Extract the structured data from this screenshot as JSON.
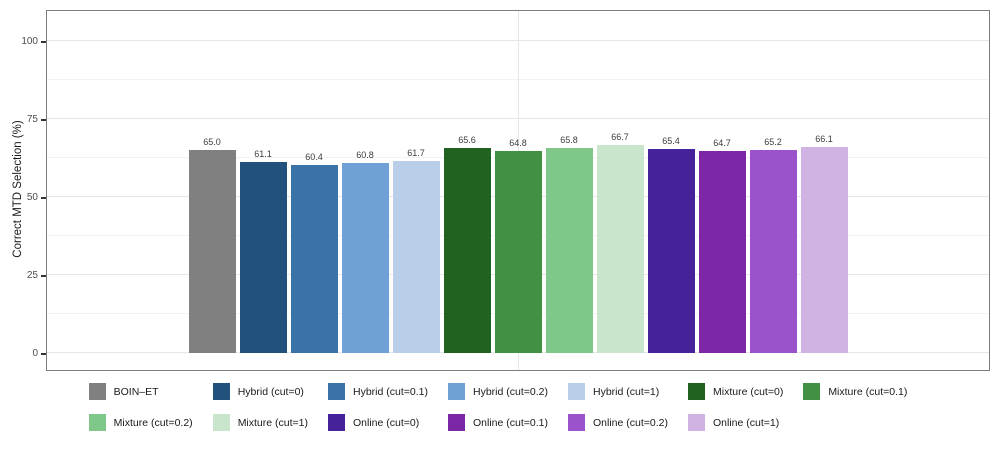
{
  "chart_data": {
    "type": "bar",
    "title": "",
    "xlabel": "",
    "ylabel": "Correct MTD Selection (%)",
    "ylim": [
      0,
      110
    ],
    "yticks": [
      0,
      25,
      50,
      75,
      100
    ],
    "grid": true,
    "legend_position": "bottom",
    "legend_columns": 7,
    "value_label_decimals": 1,
    "series": [
      {
        "name": "BOIN–ET",
        "value": 65.0,
        "color": "#808080"
      },
      {
        "name": "Hybrid (cut=0)",
        "value": 61.1,
        "color": "#21527e"
      },
      {
        "name": "Hybrid (cut=0.1)",
        "value": 60.4,
        "color": "#3b73a9"
      },
      {
        "name": "Hybrid (cut=0.2)",
        "value": 60.8,
        "color": "#6fa0d6"
      },
      {
        "name": "Hybrid (cut=1)",
        "value": 61.7,
        "color": "#b9cfe9"
      },
      {
        "name": "Mixture (cut=0)",
        "value": 65.6,
        "color": "#20621f"
      },
      {
        "name": "Mixture (cut=0.1)",
        "value": 64.8,
        "color": "#419044"
      },
      {
        "name": "Mixture (cut=0.2)",
        "value": 65.8,
        "color": "#80c78a"
      },
      {
        "name": "Mixture (cut=1)",
        "value": 66.7,
        "color": "#c9e5cb"
      },
      {
        "name": "Online (cut=0)",
        "value": 65.4,
        "color": "#45219a"
      },
      {
        "name": "Online (cut=0.1)",
        "value": 64.7,
        "color": "#7b27a6"
      },
      {
        "name": "Online (cut=0.2)",
        "value": 65.2,
        "color": "#9b53cc"
      },
      {
        "name": "Online (cut=1)",
        "value": 66.1,
        "color": "#d0b3e3"
      }
    ],
    "colors": {
      "panel_border": "#7c7c7c",
      "gridline_major": "#e6e6e6",
      "gridline_minor": "#f3f3f3",
      "tick_label": "#4d4d4d",
      "value_label": "#3c3c3c",
      "axis_title": "#1a1a1a",
      "background": "#ffffff"
    }
  }
}
